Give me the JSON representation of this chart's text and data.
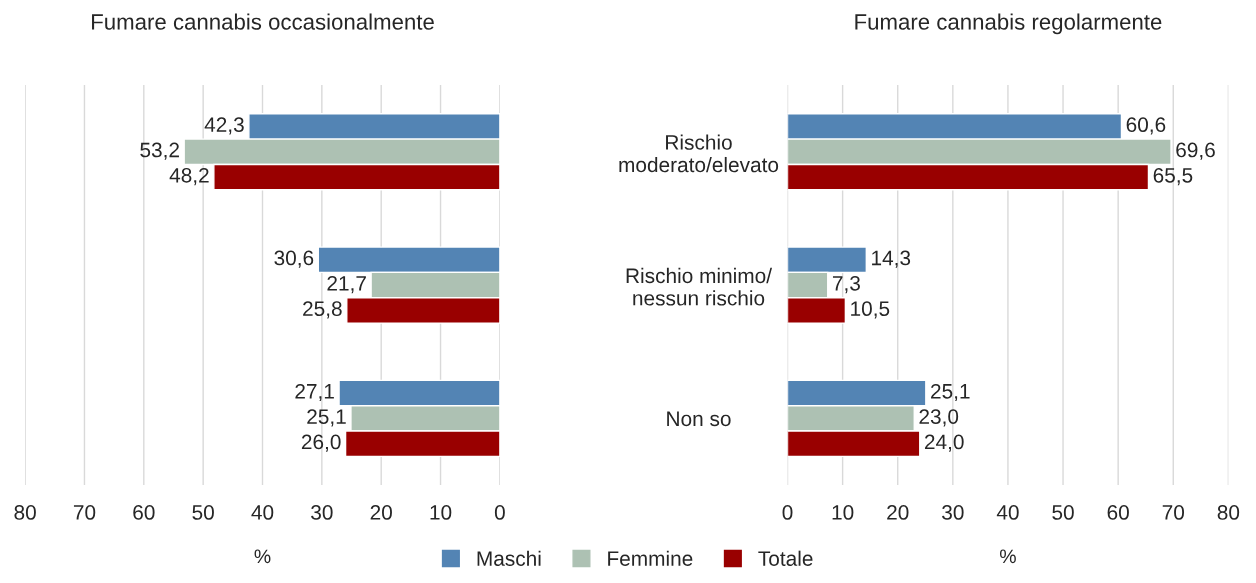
{
  "chart_data": [
    {
      "type": "bar",
      "orientation": "horizontal",
      "title": "Fumare cannabis occasionalmente",
      "xlabel": "%",
      "categories": [
        "Rischio\nmoderato/elevato",
        "Rischio minimo/\nnessun rischio",
        "Non so"
      ],
      "xlim": [
        80,
        0
      ],
      "xticks": [
        80,
        70,
        60,
        50,
        40,
        30,
        20,
        10,
        0
      ],
      "grid": "x",
      "legend": "bottom",
      "series": [
        {
          "name": "Maschi",
          "color": "#5384b4",
          "values": [
            42.3,
            30.6,
            27.1
          ],
          "value_labels": [
            "42,3",
            "30,6",
            "27,1"
          ]
        },
        {
          "name": "Femmine",
          "color": "#adc1b3",
          "values": [
            53.2,
            21.7,
            25.1
          ],
          "value_labels": [
            "53,2",
            "21,7",
            "25,1"
          ]
        },
        {
          "name": "Totale",
          "color": "#990000",
          "values": [
            48.2,
            25.8,
            26.0
          ],
          "value_labels": [
            "48,2",
            "25,8",
            "26,0"
          ]
        }
      ]
    },
    {
      "type": "bar",
      "orientation": "horizontal",
      "title": "Fumare cannabis regolarmente",
      "xlabel": "%",
      "categories": [
        null,
        null,
        null
      ],
      "xlim": [
        0,
        80
      ],
      "xticks": [
        0,
        10,
        20,
        30,
        40,
        50,
        60,
        70,
        80
      ],
      "grid": "x",
      "tick_labels": "x",
      "series": [
        {
          "color": "#5384b4",
          "values": [
            60.6,
            14.3,
            25.1
          ],
          "value_labels": [
            "60,6",
            "14,3",
            "25,1"
          ]
        },
        {
          "color": "#adc1b3",
          "values": [
            69.6,
            7.3,
            23.0
          ],
          "value_labels": [
            "69,6",
            "7,3",
            "23,0"
          ]
        },
        {
          "color": "#990000",
          "values": [
            65.5,
            10.5,
            24.0
          ],
          "value_labels": [
            "65,5",
            "10,5",
            "24,0"
          ]
        }
      ]
    }
  ]
}
